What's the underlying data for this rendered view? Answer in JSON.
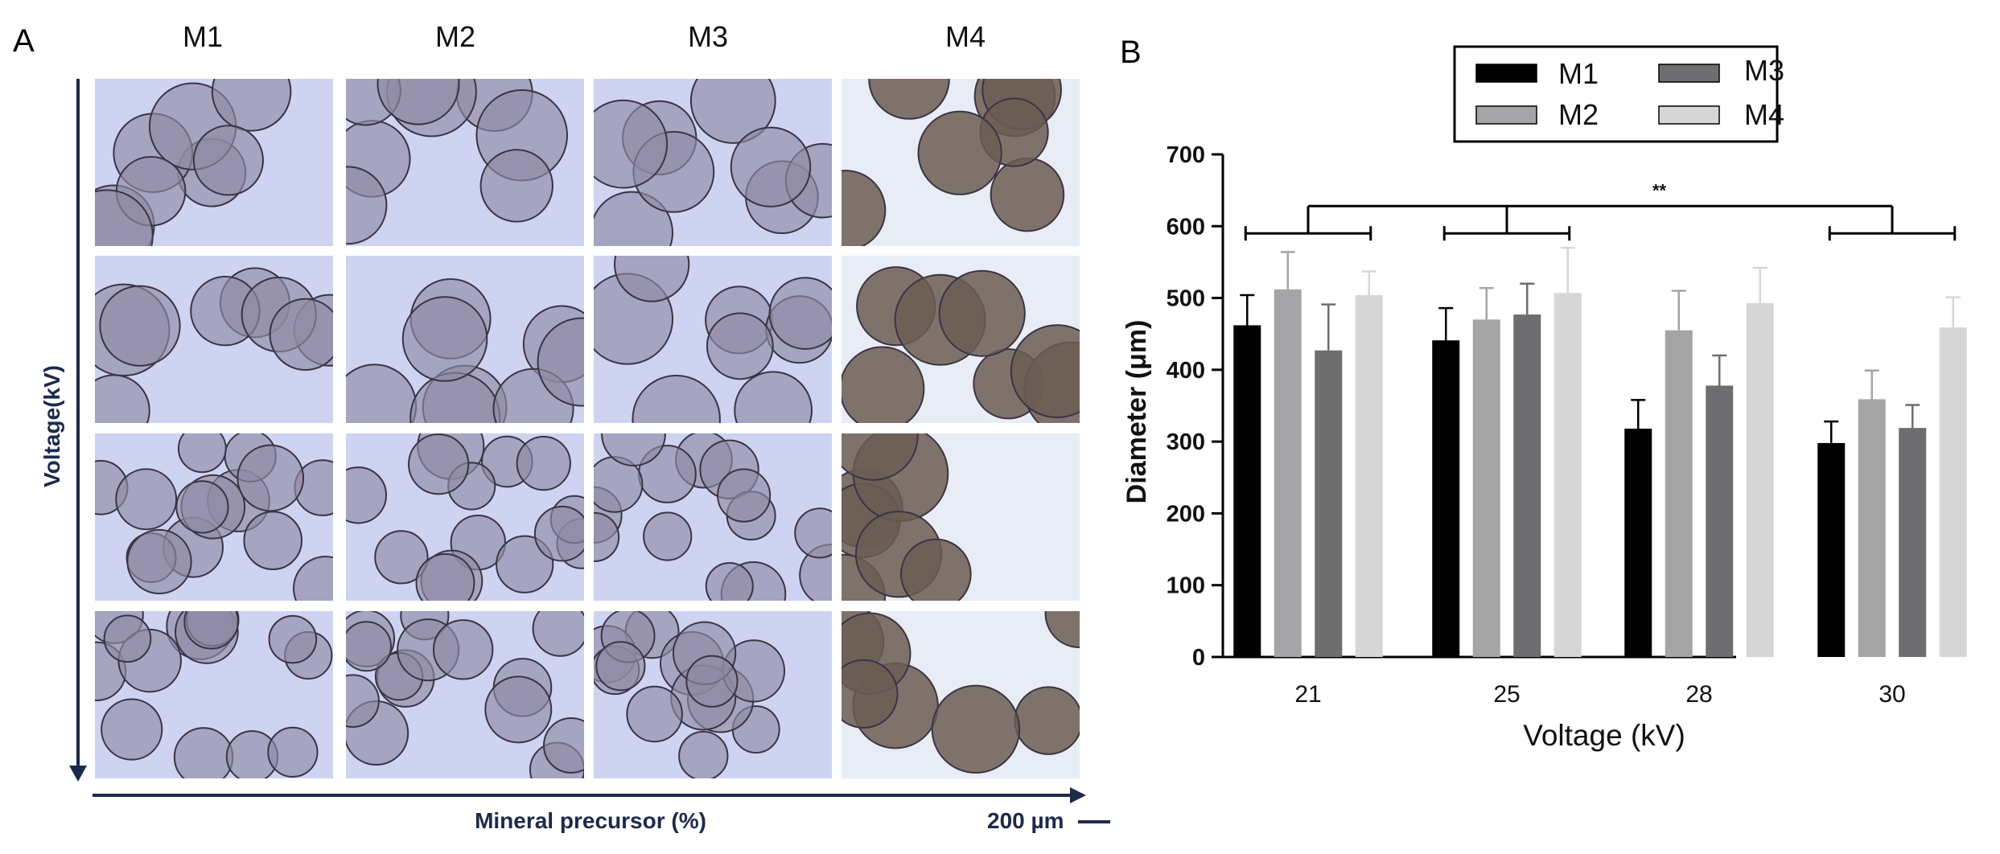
{
  "panelA": {
    "label": "A",
    "columns": [
      "M1",
      "M2",
      "M3",
      "M4"
    ],
    "y_axis_label": "Voltage(kV)",
    "x_axis_label": "Mineral precursor (%)",
    "scale_bar": "200 µm"
  },
  "panelB": {
    "label": "B"
  },
  "colors": {
    "M1": "#000000",
    "M2": "#a5a5a8",
    "M3": "#6e6e70",
    "M4": "#d6d6d6",
    "axis_navy": "#1c2a4a",
    "micro_bg_blue": "#cfd3f2",
    "micro_particle_purple": "#8f8aa6",
    "micro_bg_m4": "#e8ecf4",
    "micro_particle_brown": "#6b5d52"
  },
  "chart_data": {
    "type": "bar",
    "categories": [
      "21",
      "25",
      "28",
      "30"
    ],
    "series": [
      {
        "name": "M1",
        "values": [
          462,
          441,
          318,
          298
        ],
        "errors": [
          42,
          45,
          40,
          30
        ]
      },
      {
        "name": "M2",
        "values": [
          512,
          470,
          455,
          359
        ],
        "errors": [
          52,
          44,
          55,
          40
        ]
      },
      {
        "name": "M3",
        "values": [
          427,
          477,
          378,
          319
        ],
        "errors": [
          64,
          43,
          42,
          32
        ]
      },
      {
        "name": "M4",
        "values": [
          504,
          507,
          493,
          459
        ],
        "errors": [
          33,
          63,
          49,
          42
        ]
      }
    ],
    "xlabel": "Voltage (kV)",
    "ylabel": "Diameter (μm)",
    "ylim": [
      0,
      700
    ],
    "yticks": [
      0,
      100,
      200,
      300,
      400,
      500,
      600,
      700
    ],
    "legend": {
      "placement": "top",
      "entries": [
        "M1",
        "M2",
        "M3",
        "M4"
      ]
    },
    "significance": {
      "label": "**",
      "brackets": [
        [
          "21"
        ],
        [
          "25"
        ],
        [
          "30"
        ]
      ],
      "bracket_level": 590,
      "top_level": 628
    }
  }
}
